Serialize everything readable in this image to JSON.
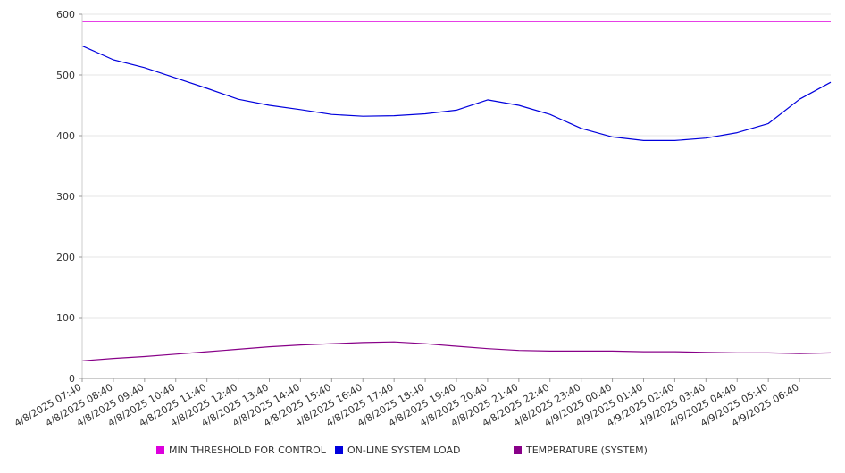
{
  "chart_data": {
    "type": "line",
    "title": "",
    "xlabel": "",
    "ylabel": "",
    "ylim": [
      0,
      600
    ],
    "yticks": [
      0,
      100,
      200,
      300,
      400,
      500,
      600
    ],
    "grid": true,
    "legend_position": "bottom",
    "x_tick_labels": [
      "4/8/2025 07:40",
      "4/8/2025 08:40",
      "4/8/2025 09:40",
      "4/8/2025 10:40",
      "4/8/2025 11:40",
      "4/8/2025 12:40",
      "4/8/2025 13:40",
      "4/8/2025 14:40",
      "4/8/2025 15:40",
      "4/8/2025 16:40",
      "4/8/2025 17:40",
      "4/8/2025 18:40",
      "4/8/2025 19:40",
      "4/8/2025 20:40",
      "4/8/2025 21:40",
      "4/8/2025 22:40",
      "4/8/2025 23:40",
      "4/9/2025 00:40",
      "4/9/2025 01:40",
      "4/9/2025 02:40",
      "4/9/2025 03:40",
      "4/9/2025 04:40",
      "4/9/2025 05:40",
      "4/9/2025 06:40"
    ],
    "x": [
      "4/8/2025 07:40",
      "4/8/2025 08:40",
      "4/8/2025 09:40",
      "4/8/2025 10:40",
      "4/8/2025 11:40",
      "4/8/2025 12:40",
      "4/8/2025 13:40",
      "4/8/2025 14:40",
      "4/8/2025 15:40",
      "4/8/2025 16:40",
      "4/8/2025 17:40",
      "4/8/2025 18:40",
      "4/8/2025 19:40",
      "4/8/2025 20:40",
      "4/8/2025 21:40",
      "4/8/2025 22:40",
      "4/8/2025 23:40",
      "4/9/2025 00:40",
      "4/9/2025 01:40",
      "4/9/2025 02:40",
      "4/9/2025 03:40",
      "4/9/2025 04:40",
      "4/9/2025 05:40",
      "4/9/2025 06:40",
      "4/9/2025 07:40"
    ],
    "series": [
      {
        "name": "MIN THRESHOLD FOR CONTROL",
        "color": "#dd00dd",
        "values": [
          588,
          588,
          588,
          588,
          588,
          588,
          588,
          588,
          588,
          588,
          588,
          588,
          588,
          588,
          588,
          588,
          588,
          588,
          588,
          588,
          588,
          588,
          588,
          588,
          588
        ]
      },
      {
        "name": "ON-LINE SYSTEM LOAD",
        "color": "#0000dd",
        "values": [
          548,
          525,
          512,
          495,
          478,
          460,
          450,
          443,
          435,
          432,
          433,
          436,
          442,
          459,
          450,
          435,
          412,
          398,
          392,
          392,
          396,
          405,
          420,
          460,
          488
        ]
      },
      {
        "name": "TEMPERATURE (SYSTEM)",
        "color": "#880088",
        "values": [
          29,
          33,
          36,
          40,
          44,
          48,
          52,
          55,
          57,
          59,
          60,
          57,
          53,
          49,
          46,
          45,
          45,
          45,
          44,
          44,
          43,
          42,
          42,
          41,
          42
        ]
      }
    ]
  }
}
